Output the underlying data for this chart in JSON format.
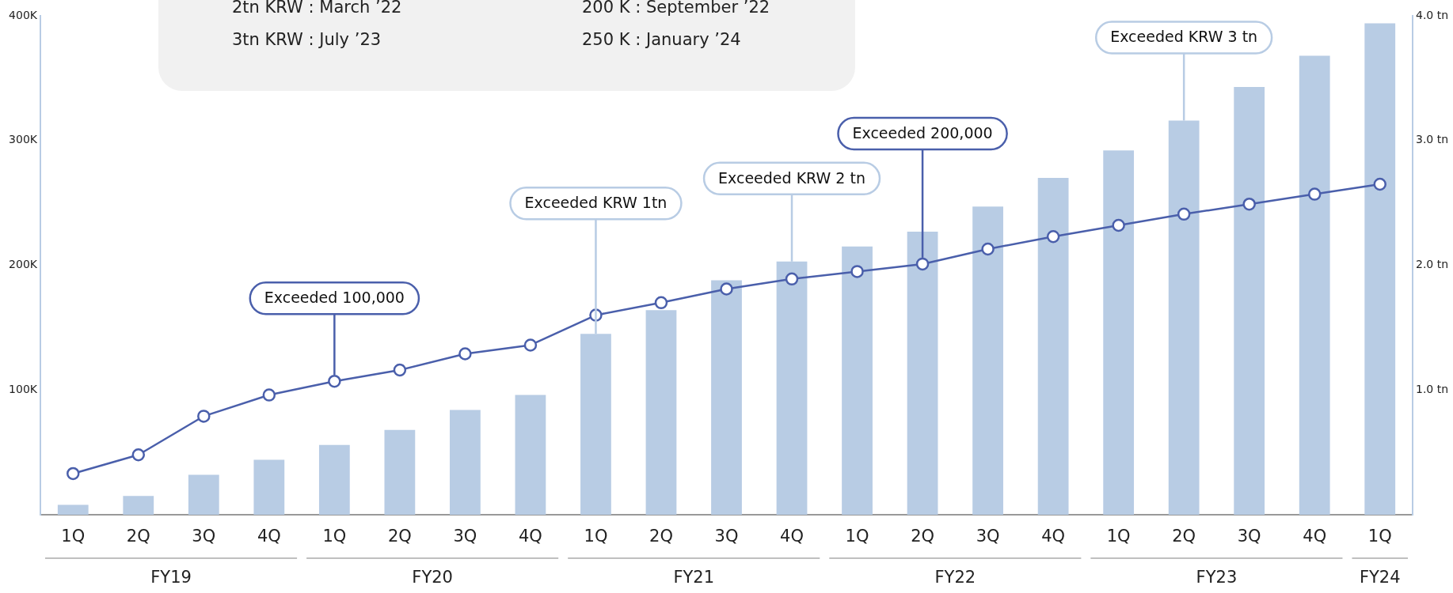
{
  "chart_data": {
    "type": "bar",
    "categories": [
      "1Q",
      "2Q",
      "3Q",
      "4Q",
      "1Q",
      "2Q",
      "3Q",
      "4Q",
      "1Q",
      "2Q",
      "3Q",
      "4Q",
      "1Q",
      "2Q",
      "3Q",
      "4Q",
      "1Q",
      "2Q",
      "3Q",
      "4Q",
      "1Q"
    ],
    "series": [
      {
        "axis": "y2",
        "color": "#b8cce4",
        "values": [
          0.08,
          0.15,
          0.32,
          0.44,
          0.56,
          0.68,
          0.84,
          0.96,
          1.45,
          1.64,
          1.88,
          2.03,
          2.15,
          2.27,
          2.47,
          2.7,
          2.92,
          3.16,
          3.43,
          3.68,
          3.94
        ]
      },
      {
        "type": "line",
        "color": "#4a5fab",
        "values": [
          33,
          48,
          79,
          96,
          107,
          116,
          129,
          136,
          160,
          170,
          181,
          189,
          195,
          201,
          213,
          223,
          232,
          241,
          249,
          257,
          265
        ]
      }
    ],
    "ylim": [
      0,
      400
    ],
    "yticks": [
      {
        "value": 100,
        "label": "100K"
      },
      {
        "value": 200,
        "label": "200K"
      },
      {
        "value": 300,
        "label": "300K"
      },
      {
        "value": 400,
        "label": "400K"
      }
    ],
    "y2lim": [
      0,
      4
    ],
    "y2ticks": [
      {
        "value": 1,
        "label": "1.0 tn"
      },
      {
        "value": 2,
        "label": "2.0 tn"
      },
      {
        "value": 3,
        "label": "3.0 tn"
      },
      {
        "value": 4,
        "label": "4.0 tn"
      }
    ],
    "marker": "circle",
    "legend": false,
    "grid": false,
    "annotations": [
      "2tn KRW : March ’22",
      "200 K : September ’22",
      "3tn KRW : July ’23",
      "250 K : January ’24",
      "FY19",
      "FY20",
      "FY21",
      "FY22",
      "FY23",
      "FY24",
      {
        "text": "Exceeded 100,000",
        "y": 107
      },
      {
        "text": "Exceeded KRW 1tn",
        "y": 145
      },
      {
        "text": "Exceeded KRW 2 tn",
        "y": 203
      },
      {
        "text": "Exceeded 200,000",
        "y": 201
      },
      {
        "text": "Exceeded KRW 3 tn",
        "y": 316
      }
    ]
  }
}
